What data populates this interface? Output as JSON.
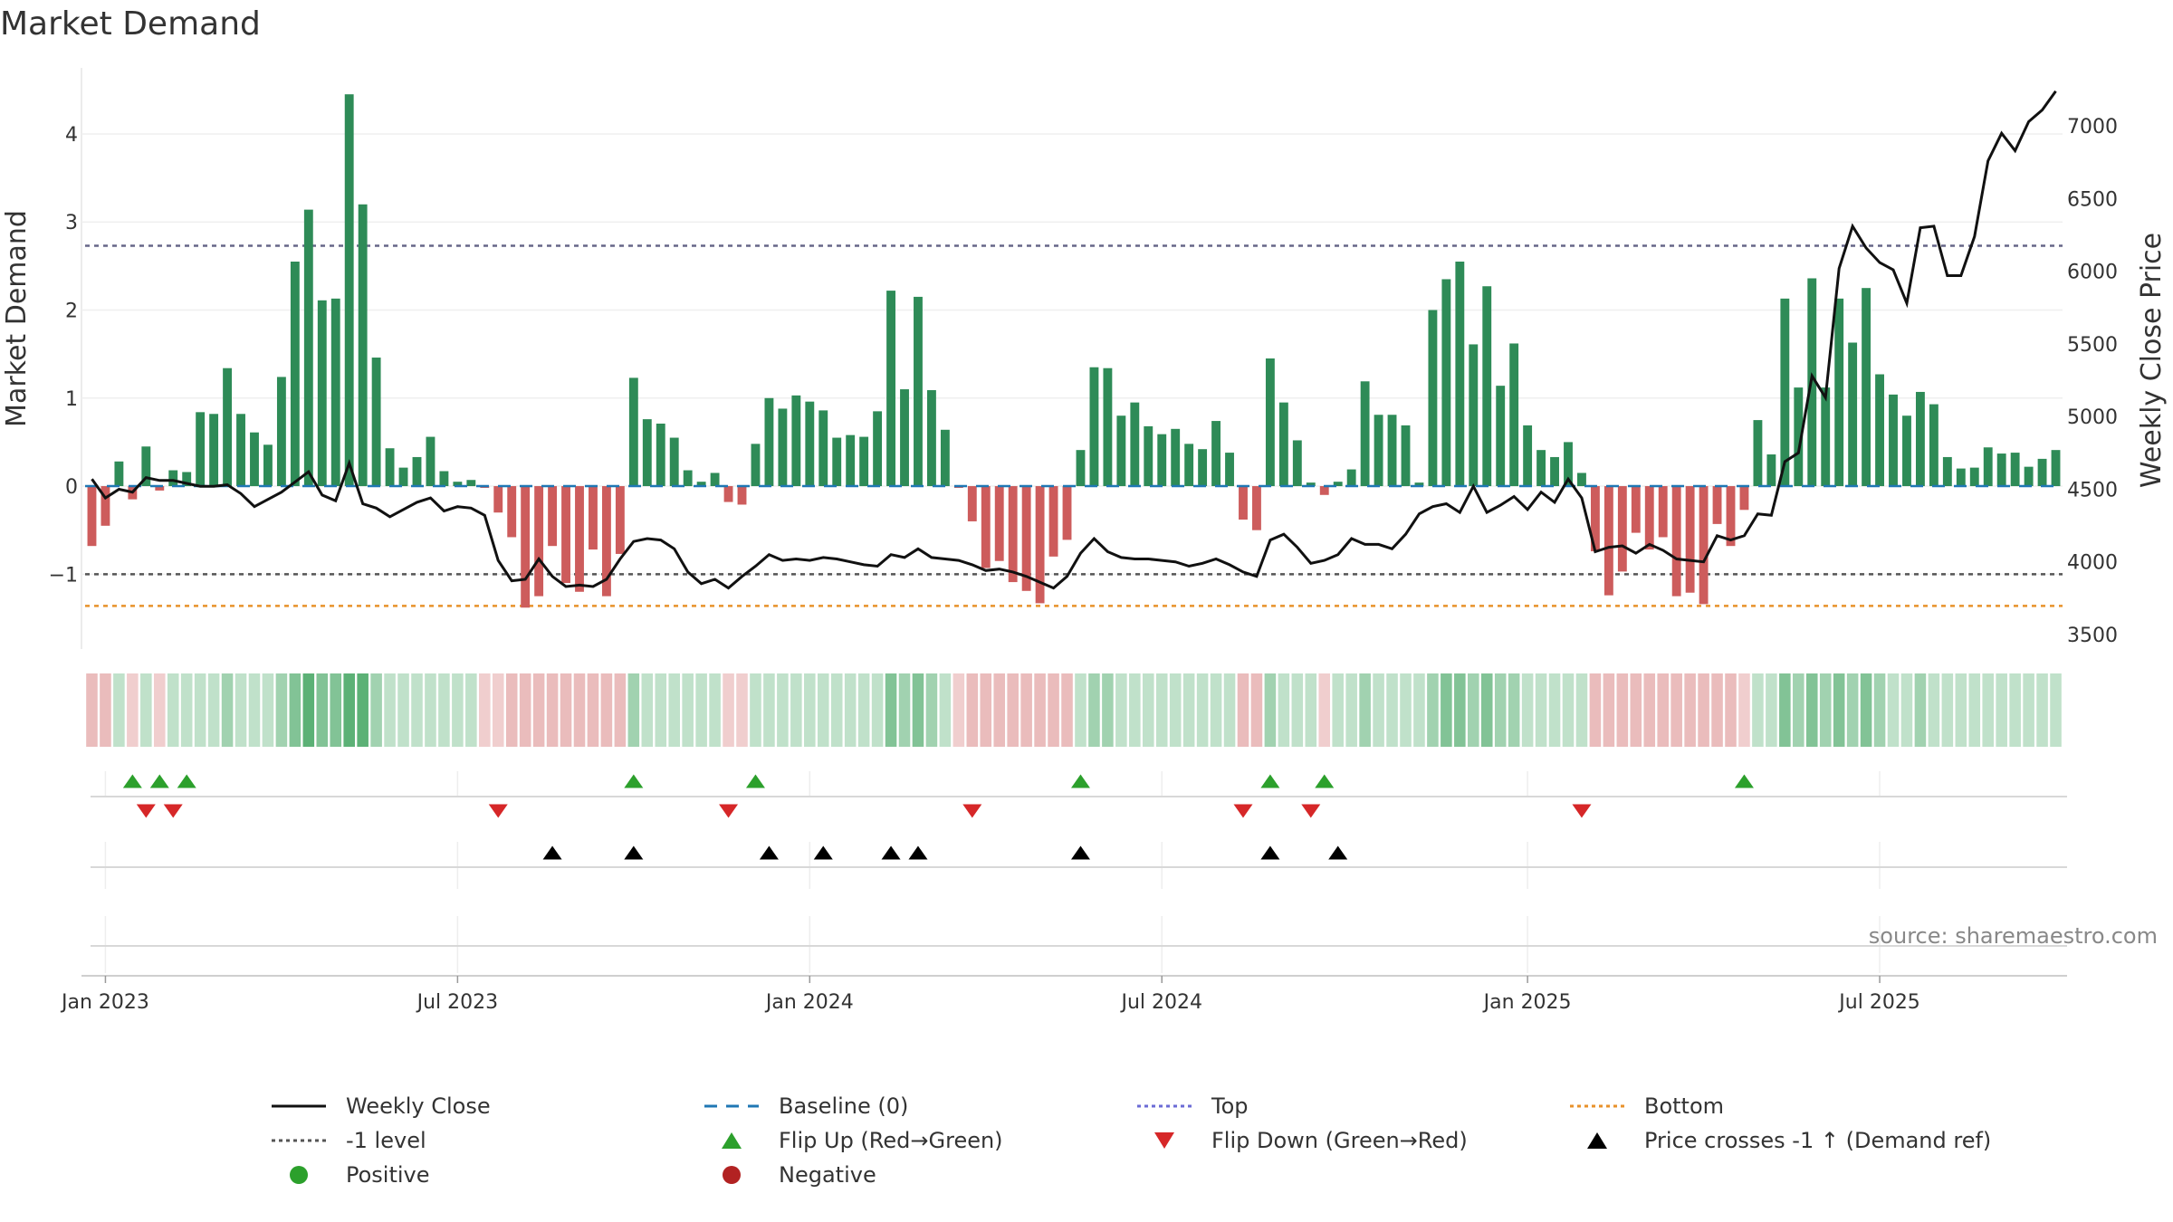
{
  "chart_data": {
    "type": "bar",
    "title": "Market Demand",
    "ylabel": "Market Demand",
    "y2label": "Weekly Close Price",
    "ylim": [
      -1.85,
      4.75
    ],
    "y2lim": [
      3400,
      7400
    ],
    "yticks": [
      "4",
      "3",
      "2",
      "1",
      "0",
      "−1"
    ],
    "ytick_values": [
      4,
      3,
      2,
      1,
      0,
      -1
    ],
    "y2ticks": [
      "7000",
      "6500",
      "6000",
      "5500",
      "5000",
      "4500",
      "4000",
      "3500"
    ],
    "y2tick_values": [
      7000,
      6500,
      6000,
      5500,
      5000,
      4500,
      4000,
      3500
    ],
    "xticks": [
      "Jan 2023",
      "Jul 2023",
      "Jan 2024",
      "Jul 2024",
      "Jan 2025",
      "Jul 2025"
    ],
    "xtick_weeks": [
      1,
      27,
      53,
      79,
      106,
      132
    ],
    "levels": {
      "top": 2.73,
      "minus_one": -1.0,
      "bottom": -1.36,
      "baseline": 0
    },
    "colors": {
      "positive": "#2e8b57",
      "negative": "#cd5c5c",
      "price": "#111111",
      "flip_up": "#2ca02c",
      "flip_down": "#d62728",
      "cross": "#000000",
      "top": "#6b6bd6",
      "bottom": "#e8922a",
      "baseline": "#1f77b4",
      "minus_one": "#555555"
    },
    "series": [
      {
        "name": "Market Demand",
        "values": [
          -0.68,
          -0.45,
          0.28,
          -0.15,
          0.45,
          -0.05,
          0.18,
          0.16,
          0.84,
          0.82,
          1.34,
          0.82,
          0.61,
          0.47,
          1.24,
          2.55,
          3.14,
          2.11,
          2.13,
          4.45,
          3.2,
          1.46,
          0.43,
          0.21,
          0.33,
          0.56,
          0.17,
          0.05,
          0.07,
          -0.02,
          -0.3,
          -0.58,
          -1.38,
          -1.25,
          -0.68,
          -1.1,
          -1.2,
          -0.72,
          -1.25,
          -0.77,
          1.23,
          0.76,
          0.71,
          0.55,
          0.18,
          0.05,
          0.15,
          -0.18,
          -0.21,
          0.48,
          1.0,
          0.88,
          1.03,
          0.96,
          0.86,
          0.55,
          0.58,
          0.56,
          0.85,
          2.22,
          1.1,
          2.15,
          1.09,
          0.64,
          -0.02,
          -0.4,
          -0.93,
          -0.85,
          -1.09,
          -1.19,
          -1.33,
          -0.8,
          -0.61,
          0.41,
          1.35,
          1.34,
          0.8,
          0.95,
          0.68,
          0.59,
          0.65,
          0.48,
          0.42,
          0.74,
          0.38,
          -0.38,
          -0.5,
          1.45,
          0.95,
          0.52,
          0.04,
          -0.1,
          0.05,
          0.19,
          1.19,
          0.81,
          0.81,
          0.69,
          0.04,
          2.0,
          2.35,
          2.55,
          1.61,
          2.27,
          1.14,
          1.62,
          0.69,
          0.41,
          0.33,
          0.5,
          0.15,
          -0.74,
          -1.24,
          -0.97,
          -0.53,
          -0.72,
          -0.58,
          -1.25,
          -1.21,
          -1.34,
          -0.43,
          -0.68,
          -0.27,
          0.75,
          0.36,
          2.13,
          1.12,
          2.36,
          1.12,
          2.13,
          1.63,
          2.25,
          1.27,
          1.04,
          0.8,
          1.07,
          0.93,
          0.33,
          0.2,
          0.21,
          0.44,
          0.37,
          0.38,
          0.22,
          0.31,
          0.41
        ]
      },
      {
        "name": "Weekly Close",
        "values": [
          4570,
          4440,
          4500,
          4480,
          4580,
          4560,
          4560,
          4540,
          4520,
          4520,
          4530,
          4470,
          4380,
          4430,
          4480,
          4550,
          4620,
          4460,
          4420,
          4680,
          4400,
          4370,
          4310,
          4360,
          4410,
          4440,
          4350,
          4380,
          4370,
          4320,
          4010,
          3870,
          3880,
          4020,
          3900,
          3830,
          3840,
          3830,
          3880,
          4020,
          4140,
          4160,
          4150,
          4090,
          3930,
          3850,
          3880,
          3820,
          3900,
          3970,
          4050,
          4010,
          4020,
          4010,
          4030,
          4020,
          4000,
          3980,
          3970,
          4050,
          4030,
          4090,
          4030,
          4020,
          4010,
          3980,
          3940,
          3950,
          3930,
          3900,
          3860,
          3820,
          3900,
          4060,
          4160,
          4070,
          4030,
          4020,
          4020,
          4010,
          4000,
          3970,
          3990,
          4020,
          3980,
          3930,
          3900,
          4150,
          4190,
          4100,
          3990,
          4010,
          4050,
          4160,
          4120,
          4120,
          4090,
          4190,
          4330,
          4380,
          4400,
          4340,
          4520,
          4340,
          4390,
          4450,
          4360,
          4480,
          4410,
          4570,
          4440,
          4070,
          4100,
          4110,
          4060,
          4120,
          4080,
          4020,
          4010,
          4000,
          4180,
          4150,
          4180,
          4330,
          4320,
          4690,
          4750,
          5280,
          5130,
          6020,
          6310,
          6160,
          6060,
          6010,
          5780,
          6300,
          6310,
          5970,
          5970,
          6240,
          6760,
          6950,
          6830,
          7030,
          7110,
          7240
        ]
      }
    ],
    "flip_up_weeks": [
      3,
      5,
      7,
      40,
      49,
      73,
      87,
      91,
      122
    ],
    "flip_down_weeks": [
      4,
      6,
      30,
      47,
      65,
      85,
      90,
      110
    ],
    "price_cross_weeks": [
      34,
      40,
      50,
      54,
      59,
      61,
      73,
      87,
      92
    ],
    "source_text": "source: sharemaestro.com"
  },
  "legend": {
    "weekly_close": "Weekly Close",
    "baseline": "Baseline (0)",
    "top": "Top",
    "bottom": "Bottom",
    "minus_one_level": "-1 level",
    "flip_up": "Flip Up (Red→Green)",
    "flip_down": "Flip Down (Green→Red)",
    "price_crosses": "Price crosses -1 ↑ (Demand ref)",
    "positive": "Positive",
    "negative": "Negative"
  }
}
